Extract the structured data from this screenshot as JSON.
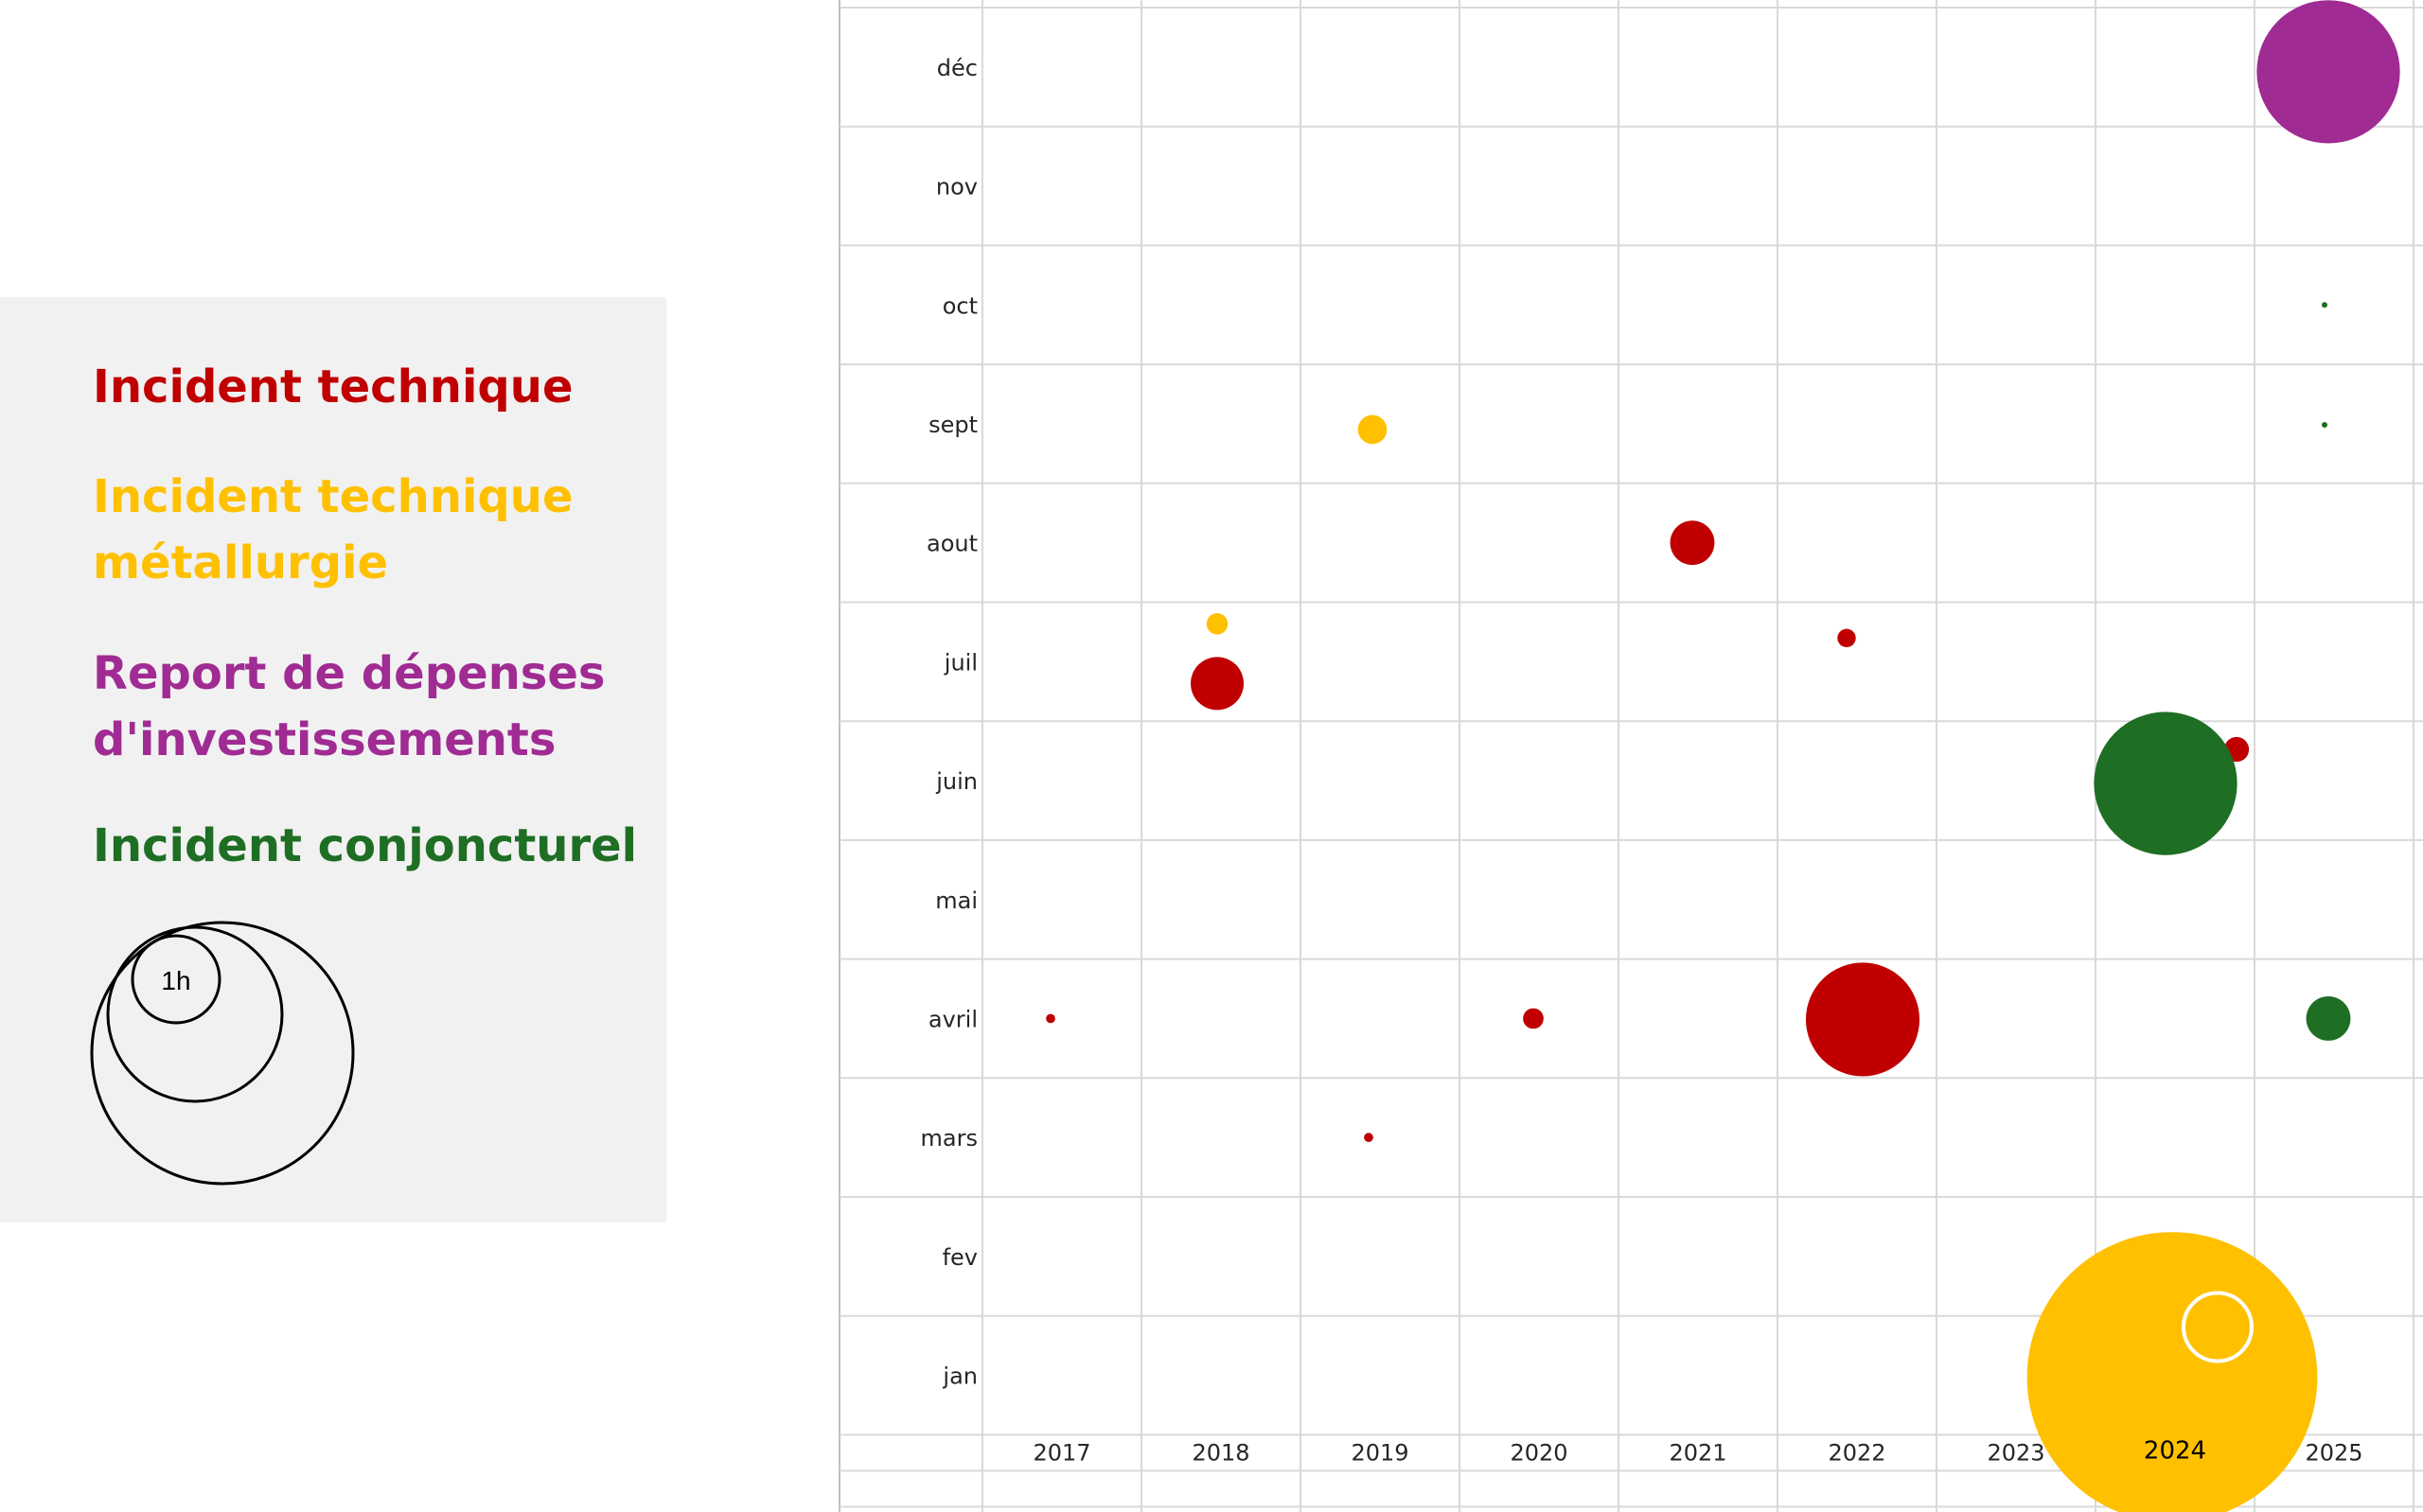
{
  "legend": {
    "entries": [
      {
        "label": "Incident technique",
        "color": "#c00000"
      },
      {
        "label": "Incident technique\nmétallurgie",
        "color": "#ffc000"
      },
      {
        "label": "Report de dépenses\nd'investissements",
        "color": "#a02b93"
      },
      {
        "label": "Incident conjoncturel",
        "color": "#1e6e24"
      }
    ],
    "size_key_label": "1h"
  },
  "chart_data": {
    "type": "bubble",
    "x_categories": [
      "2017",
      "2018",
      "2019",
      "2020",
      "2021",
      "2022",
      "2023",
      "2024",
      "2025"
    ],
    "y_categories": [
      "jan",
      "fev",
      "mars",
      "avril",
      "mai",
      "juin",
      "juil",
      "aout",
      "sept",
      "oct",
      "nov",
      "déc"
    ],
    "grid": true,
    "legend_position": "left",
    "series": [
      {
        "name": "Incident technique",
        "color": "#c00000",
        "points": [
          {
            "x": "2017",
            "y": "avril",
            "size": 0.03
          },
          {
            "x": "2018",
            "y": "juil",
            "size": 1.0
          },
          {
            "x": "2019",
            "y": "mars",
            "size": 0.03
          },
          {
            "x": "2020",
            "y": "avril",
            "size": 0.15
          },
          {
            "x": "2021",
            "y": "aout",
            "size": 0.7
          },
          {
            "x": "2022",
            "y": "juil",
            "size": 0.12
          },
          {
            "x": "2022",
            "y": "avril",
            "size": 4.6
          },
          {
            "x": "2024",
            "y": "juin",
            "size": 0.22
          }
        ]
      },
      {
        "name": "Incident technique\nmétallurgie",
        "color": "#ffc000",
        "points": [
          {
            "x": "2018",
            "y": "juil",
            "size": 0.16
          },
          {
            "x": "2019",
            "y": "sept",
            "size": 0.3
          },
          {
            "x": "2024",
            "y": "jan",
            "size": 30
          }
        ]
      },
      {
        "name": "Report de dépenses\nd'investissements",
        "color": "#a02b93",
        "points": [
          {
            "x": "2025",
            "y": "déc",
            "size": 7.3
          }
        ]
      },
      {
        "name": "Incident conjoncturel",
        "color": "#1e6e24",
        "points": [
          {
            "x": "2024",
            "y": "juin",
            "size": 7.3
          },
          {
            "x": "2025",
            "y": "avril",
            "size": 0.7
          },
          {
            "x": "2025",
            "y": "sept",
            "size": 0.01
          },
          {
            "x": "2025",
            "y": "oct",
            "size": 0.01
          }
        ]
      }
    ],
    "reference_circle": {
      "x": "2024",
      "y": "jan",
      "size": 1.0
    }
  }
}
